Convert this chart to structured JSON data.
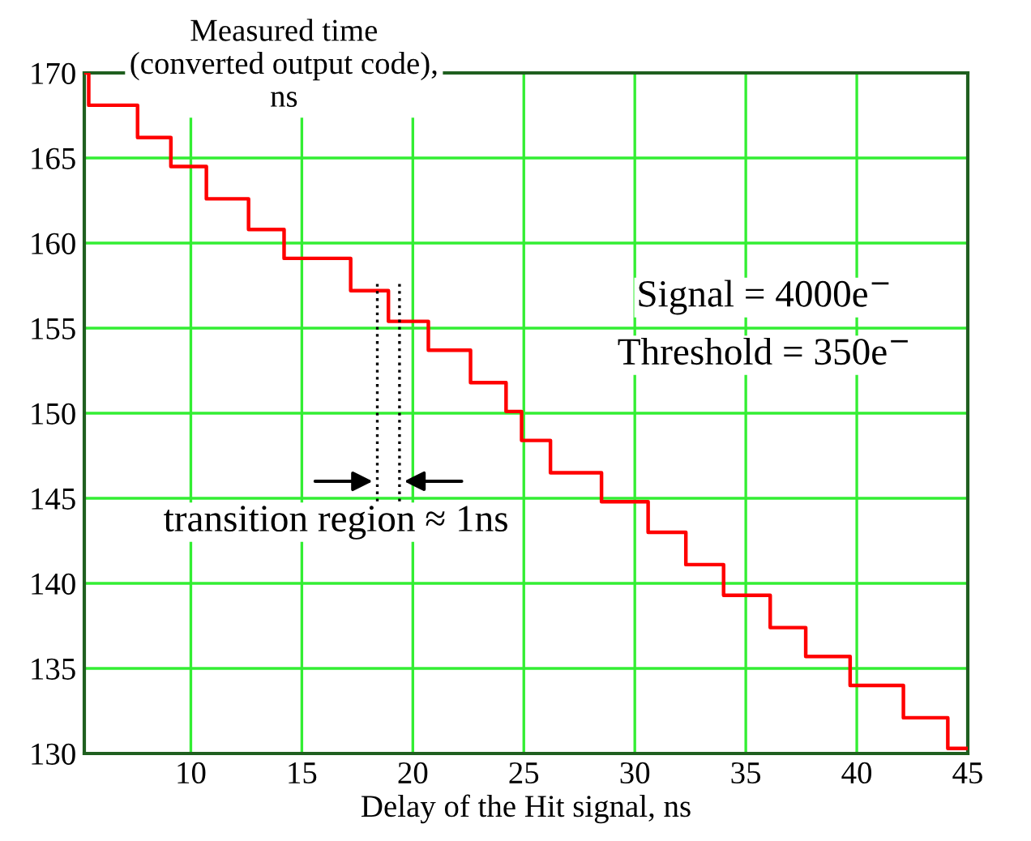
{
  "chart_data": {
    "type": "step",
    "ylabel": "Measured time\n(converted output code),\nns",
    "xlabel": "Delay of the Hit signal, ns",
    "x": [
      5.2,
      5.4,
      7.6,
      9.1,
      10.7,
      12.6,
      14.2,
      17.2,
      18.9,
      20.7,
      22.6,
      24.2,
      24.9,
      26.2,
      28.5,
      30.6,
      32.3,
      34.0,
      36.1,
      37.7,
      39.7,
      42.1,
      44.1,
      45
    ],
    "series": [
      {
        "color": "#ff0000",
        "values": [
          170,
          168.1,
          166.2,
          164.5,
          162.6,
          160.8,
          159.1,
          157.2,
          155.4,
          153.7,
          151.8,
          150.1,
          148.4,
          146.5,
          144.8,
          143.0,
          141.1,
          139.3,
          137.4,
          135.7,
          134.0,
          132.1,
          130.3,
          130.3
        ]
      }
    ],
    "xlim": [
      5.2,
      45
    ],
    "ylim": [
      130,
      170
    ],
    "xticks": [
      10,
      15,
      20,
      25,
      30,
      35,
      40,
      45
    ],
    "yticks": [
      130,
      135,
      140,
      145,
      150,
      155,
      160,
      165,
      170
    ],
    "grid": true,
    "line_style": "solid",
    "marker": "none",
    "ref_lines": [
      {
        "axis": "x",
        "value": 18.4,
        "color": "#000000",
        "line_style": "dotted"
      },
      {
        "axis": "x",
        "value": 19.4,
        "color": "#000000",
        "line_style": "dotted"
      }
    ],
    "annotations": [
      "Signal = 4000e$^{−}$",
      "Threshold = 350e$^{−}$",
      "transition region ≈ 1ns"
    ]
  }
}
